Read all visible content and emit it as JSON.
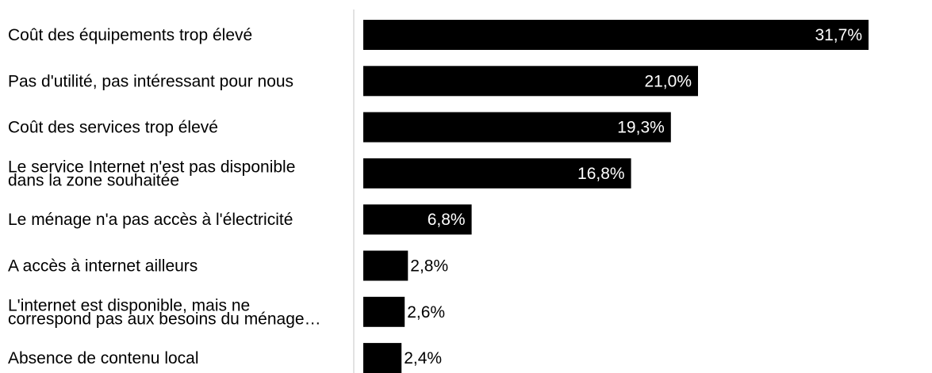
{
  "chart_data": {
    "type": "bar",
    "orientation": "horizontal",
    "categories": [
      [
        "Coût des équipements trop élevé"
      ],
      [
        "Pas d'utilité, pas intéressant pour nous"
      ],
      [
        "Coût des services trop élevé"
      ],
      [
        "Le service Internet n'est pas disponible",
        "dans la zone souhaitée"
      ],
      [
        "Le ménage n'a pas accès à l'électricité"
      ],
      [
        "A accès à internet ailleurs"
      ],
      [
        "L'internet est disponible, mais ne",
        "correspond pas aux besoins du ménage…"
      ],
      [
        "Absence de contenu local"
      ]
    ],
    "values": [
      31.7,
      21.0,
      19.3,
      16.8,
      6.8,
      2.8,
      2.6,
      2.4
    ],
    "value_labels": [
      "31,7%",
      "21,0%",
      "19,3%",
      "16,8%",
      "6,8%",
      "2,8%",
      "2,6%",
      "2,4%"
    ],
    "xlim": [
      0,
      31.7
    ],
    "bar_color": "#000000",
    "label_inside_color": "#ffffff",
    "label_outside_color": "#000000",
    "axis_color": "#d9d9d9",
    "grid": false,
    "legend": "none"
  }
}
